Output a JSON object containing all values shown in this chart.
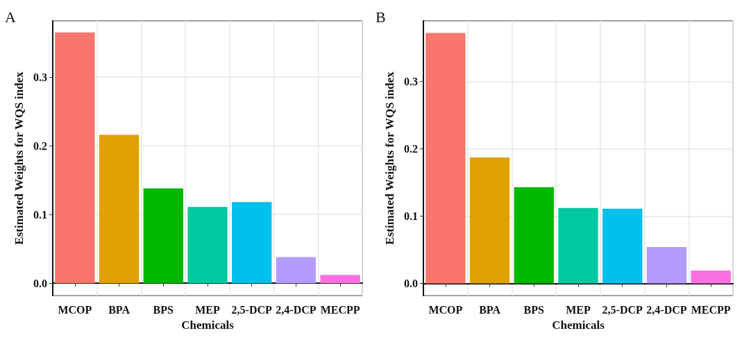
{
  "chart_data": [
    {
      "type": "bar",
      "title": "A",
      "xlabel": "Chemicals",
      "ylabel": "Estimated Weights for WQS index",
      "categories": [
        "MCOP",
        "BPA",
        "BPS",
        "MEP",
        "2,5-DCP",
        "2,4-DCP",
        "MECPP"
      ],
      "values": [
        0.365,
        0.216,
        0.138,
        0.111,
        0.118,
        0.038,
        0.012
      ],
      "colors": [
        "#f8766d",
        "#e0a000",
        "#00b800",
        "#00c8a0",
        "#00c0ec",
        "#b49cfc",
        "#fb70e0"
      ],
      "ylim": [
        -0.018,
        0.382
      ],
      "yticks": [
        {
          "value": 0,
          "label": "0.0"
        },
        0.1,
        0.2,
        0.3
      ],
      "grid": true
    },
    {
      "type": "bar",
      "title": "B",
      "xlabel": "Chemicals",
      "ylabel": "Estimated Weights for WQS index",
      "categories": [
        "MCOP",
        "BPA",
        "BPS",
        "MEP",
        "2,5-DCP",
        "2,4-DCP",
        "MECPP"
      ],
      "values": [
        0.372,
        0.187,
        0.143,
        0.112,
        0.111,
        0.054,
        0.019
      ],
      "colors": [
        "#f8766d",
        "#e0a000",
        "#00b800",
        "#00c8a0",
        "#00c0ec",
        "#b49cfc",
        "#fb70e0"
      ],
      "ylim": [
        -0.018,
        0.39
      ],
      "yticks": [
        {
          "value": 0,
          "label": "0.0"
        },
        0.1,
        0.2,
        0.3
      ],
      "grid": true
    }
  ]
}
